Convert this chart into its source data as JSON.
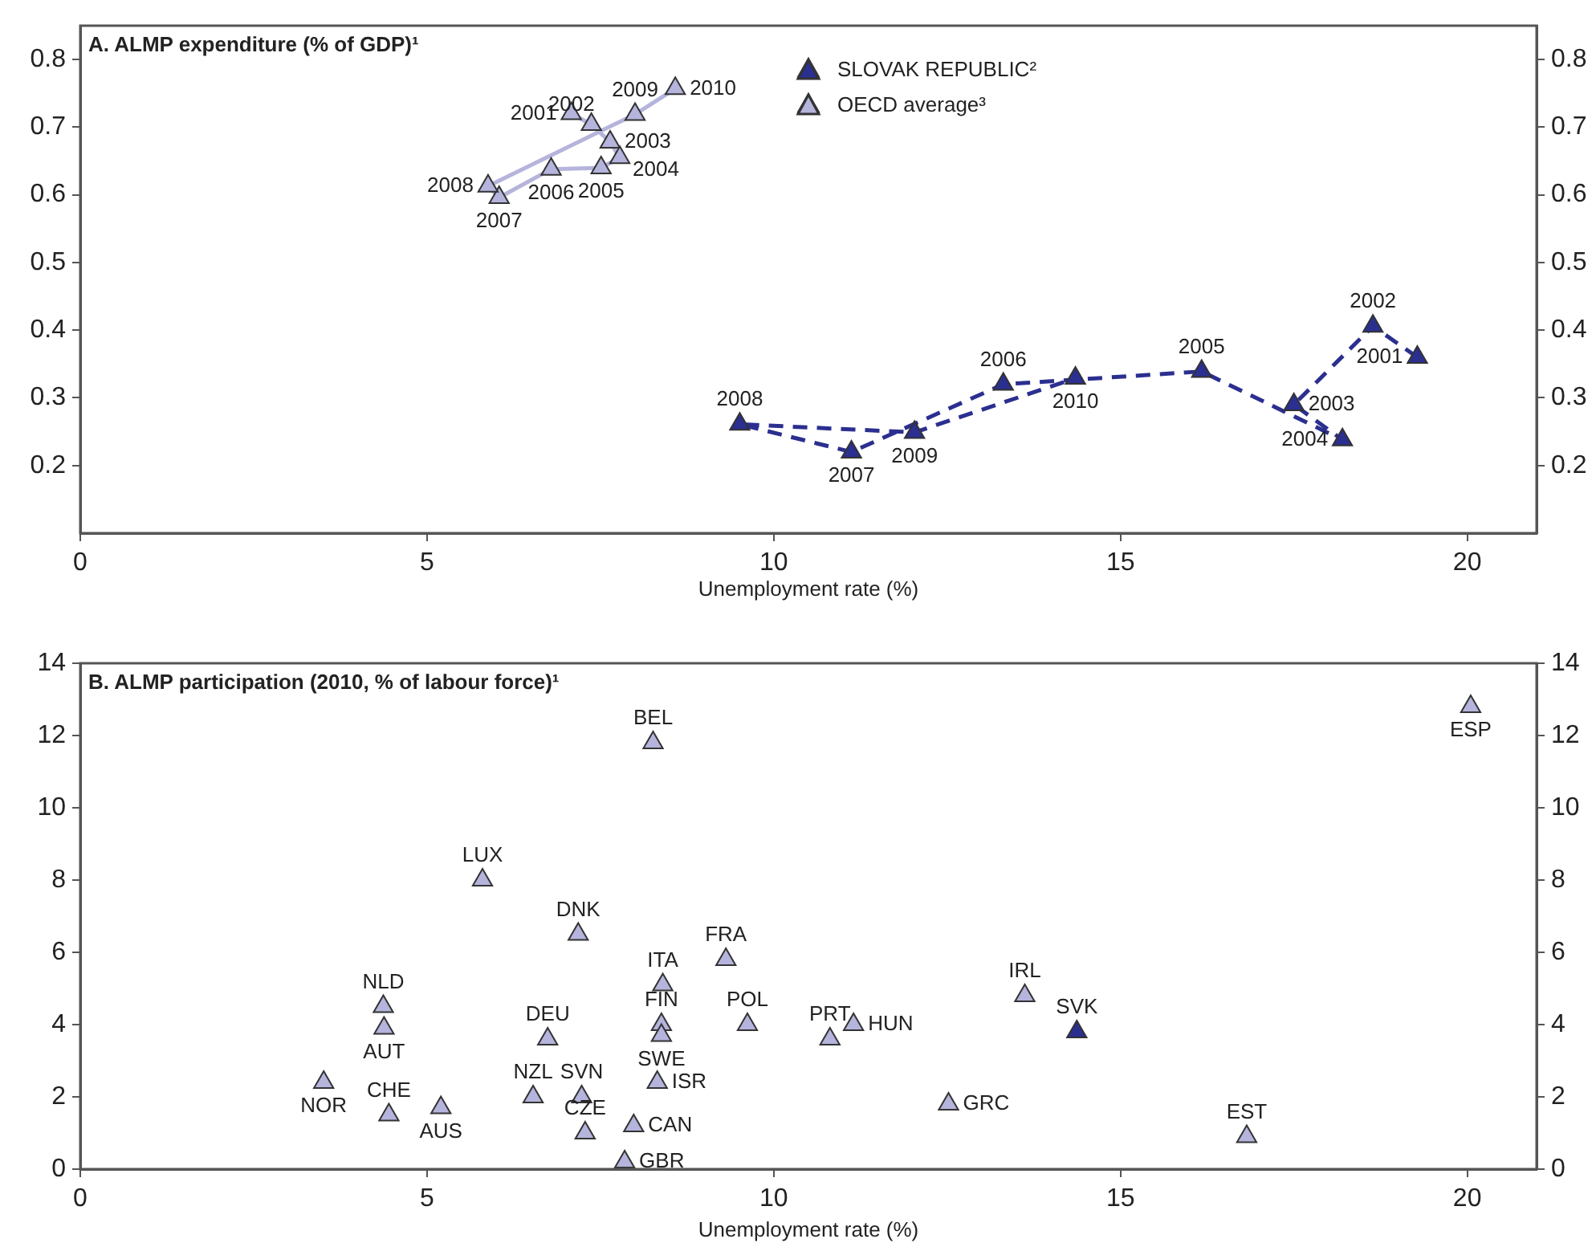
{
  "chart_data": [
    {
      "type": "line",
      "title": "A. ALMP expenditure (% of GDP)¹",
      "xlabel": "Unemployment rate (%)",
      "xlim": [
        0,
        21
      ],
      "xticks": [
        0,
        5,
        10,
        15,
        20
      ],
      "ylim": [
        0.1,
        0.85
      ],
      "yticks": [
        0.2,
        0.3,
        0.4,
        0.5,
        0.6,
        0.7,
        0.8
      ],
      "y2lim": [
        0.1,
        0.85
      ],
      "y2ticks": [
        0.2,
        0.3,
        0.4,
        0.5,
        0.6,
        0.7,
        0.8
      ],
      "legend": "top",
      "marker": "triangle",
      "series": [
        {
          "name": "SLOVAK REPUBLIC²",
          "color": "#2b2f8f",
          "line_style": "dashed",
          "x": [
            19.28,
            18.64,
            17.5,
            18.2,
            16.17,
            13.31,
            11.12,
            9.51,
            12.03,
            14.35
          ],
          "values": [
            0.36,
            0.406,
            0.29,
            0.238,
            0.339,
            0.32,
            0.22,
            0.261,
            0.249,
            0.329
          ]
        },
        {
          "name": "OECD average³",
          "color": "#b4b4dc",
          "line_style": "solid",
          "x": [
            7.08,
            7.37,
            7.64,
            7.78,
            7.51,
            6.79,
            6.04,
            5.88,
            8.0,
            8.58
          ],
          "values": [
            0.72,
            0.704,
            0.678,
            0.655,
            0.64,
            0.638,
            0.596,
            0.613,
            0.719,
            0.757
          ]
        }
      ],
      "annotations": [
        {
          "text": "2001",
          "x": 19.28,
          "y": 0.36
        },
        {
          "text": "2002",
          "x": 18.64,
          "y": 0.406
        },
        {
          "text": "2003",
          "x": 17.5,
          "y": 0.29
        },
        {
          "text": "2004",
          "x": 18.2,
          "y": 0.238
        },
        {
          "text": "2005",
          "x": 16.17,
          "y": 0.339
        },
        {
          "text": "2006",
          "x": 13.31,
          "y": 0.32
        },
        {
          "text": "2007",
          "x": 11.12,
          "y": 0.22
        },
        {
          "text": "2008",
          "x": 9.51,
          "y": 0.261
        },
        {
          "text": "2009",
          "x": 12.03,
          "y": 0.249
        },
        {
          "text": "2010",
          "x": 14.35,
          "y": 0.329
        },
        {
          "text": "2001",
          "x": 7.08,
          "y": 0.72
        },
        {
          "text": "2002",
          "x": 7.37,
          "y": 0.704
        },
        {
          "text": "2003",
          "x": 7.64,
          "y": 0.678
        },
        {
          "text": "2004",
          "x": 7.78,
          "y": 0.655
        },
        {
          "text": "2005",
          "x": 7.51,
          "y": 0.64
        },
        {
          "text": "2006",
          "x": 6.79,
          "y": 0.638
        },
        {
          "text": "2007",
          "x": 6.04,
          "y": 0.596
        },
        {
          "text": "2008",
          "x": 5.88,
          "y": 0.613
        },
        {
          "text": "2009",
          "x": 8.0,
          "y": 0.719
        },
        {
          "text": "2010",
          "x": 8.58,
          "y": 0.757
        }
      ]
    },
    {
      "type": "scatter",
      "title": "B. ALMP participation (2010, % of labour force)¹",
      "xlabel": "Unemployment rate (%)",
      "xlim": [
        0,
        21
      ],
      "xticks": [
        0,
        5,
        10,
        15,
        20
      ],
      "ylim": [
        0,
        14
      ],
      "yticks": [
        0,
        2,
        4,
        6,
        8,
        10,
        12,
        14
      ],
      "y2lim": [
        0,
        14
      ],
      "y2ticks": [
        0,
        2,
        4,
        6,
        8,
        10,
        12,
        14
      ],
      "marker": "triangle",
      "series": [
        {
          "color": "#b4b4dc",
          "x": [
            8.26,
            5.8,
            7.18,
            9.31,
            8.4,
            4.37,
            4.38,
            8.38,
            8.38,
            9.62,
            6.74,
            3.51,
            4.45,
            5.2,
            6.53,
            7.23,
            7.28,
            8.32,
            7.98,
            7.85,
            20.05,
            13.62,
            10.81,
            11.15,
            12.52,
            16.82
          ],
          "values": [
            11.8,
            8.0,
            6.5,
            5.8,
            5.1,
            4.5,
            3.9,
            4.0,
            3.7,
            4.0,
            3.6,
            2.4,
            1.5,
            1.7,
            2.0,
            2.0,
            1.0,
            2.4,
            1.2,
            0.2,
            12.8,
            4.8,
            3.6,
            4.0,
            1.8,
            0.9
          ]
        },
        {
          "color": "#2b2f8f",
          "x": [
            14.37
          ],
          "values": [
            3.8
          ]
        }
      ],
      "annotations": [
        {
          "text": "BEL",
          "x": 8.26,
          "y": 11.8
        },
        {
          "text": "LUX",
          "x": 5.8,
          "y": 8.0
        },
        {
          "text": "DNK",
          "x": 7.18,
          "y": 6.5
        },
        {
          "text": "FRA",
          "x": 9.31,
          "y": 5.8
        },
        {
          "text": "ITA",
          "x": 8.4,
          "y": 5.1
        },
        {
          "text": "NLD",
          "x": 4.37,
          "y": 4.5
        },
        {
          "text": "AUT",
          "x": 4.38,
          "y": 3.9
        },
        {
          "text": "FIN",
          "x": 8.38,
          "y": 4.0
        },
        {
          "text": "SWE",
          "x": 8.38,
          "y": 3.7
        },
        {
          "text": "POL",
          "x": 9.62,
          "y": 4.0
        },
        {
          "text": "DEU",
          "x": 6.74,
          "y": 3.6
        },
        {
          "text": "NOR",
          "x": 3.51,
          "y": 2.4
        },
        {
          "text": "CHE",
          "x": 4.45,
          "y": 1.5
        },
        {
          "text": "AUS",
          "x": 5.2,
          "y": 1.7
        },
        {
          "text": "NZL",
          "x": 6.53,
          "y": 2.0
        },
        {
          "text": "SVN",
          "x": 7.23,
          "y": 2.0
        },
        {
          "text": "CZE",
          "x": 7.28,
          "y": 1.0
        },
        {
          "text": "ISR",
          "x": 8.32,
          "y": 2.4
        },
        {
          "text": "CAN",
          "x": 7.98,
          "y": 1.2
        },
        {
          "text": "GBR",
          "x": 7.85,
          "y": 0.2
        },
        {
          "text": "ESP",
          "x": 20.05,
          "y": 12.8
        },
        {
          "text": "IRL",
          "x": 13.62,
          "y": 4.8
        },
        {
          "text": "PRT",
          "x": 10.81,
          "y": 3.6
        },
        {
          "text": "HUN",
          "x": 11.15,
          "y": 4.0
        },
        {
          "text": "GRC",
          "x": 12.52,
          "y": 1.8
        },
        {
          "text": "EST",
          "x": 16.82,
          "y": 0.9
        },
        {
          "text": "SVK",
          "x": 14.37,
          "y": 3.8
        }
      ]
    }
  ]
}
